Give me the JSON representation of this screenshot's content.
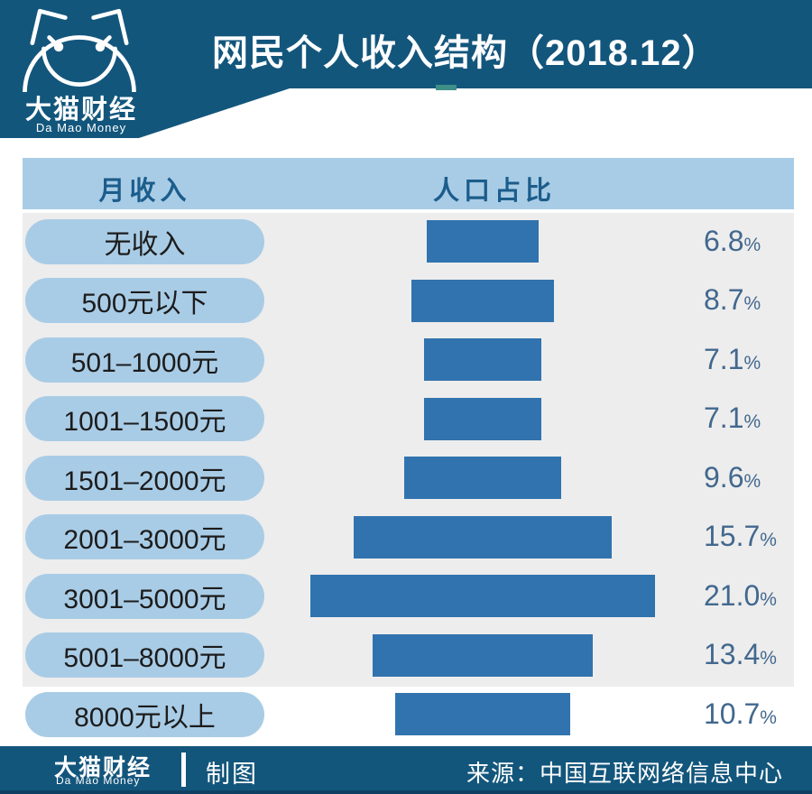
{
  "header": {
    "title": "网民个人收入结构（2018.12）",
    "brand_cn": "大猫财经",
    "brand_en": "Da Mao Money"
  },
  "table": {
    "col_income": "月收入",
    "col_share": "人口占比"
  },
  "chart_data": {
    "type": "bar",
    "orientation": "horizontal",
    "title": "网民个人收入结构（2018.12）",
    "xlabel": "人口占比",
    "ylabel": "月收入",
    "unit": "%",
    "xlim": [
      0,
      22
    ],
    "grid": false,
    "legend": "none",
    "categories": [
      "无收入",
      "500元以下",
      "501–1000元",
      "1001–1500元",
      "1501–2000元",
      "2001–3000元",
      "3001–5000元",
      "5001–8000元",
      "8000元以上"
    ],
    "values": [
      6.8,
      8.7,
      7.1,
      7.1,
      9.6,
      15.7,
      21.0,
      13.4,
      10.7
    ],
    "value_labels": [
      "6.8",
      "8.7",
      "7.1",
      "7.1",
      "9.6",
      "15.7",
      "21.0",
      "13.4",
      "10.7"
    ]
  },
  "colors": {
    "banner_blue": "#13567C",
    "bar_blue": "#3173AE",
    "pill_blue": "#A9CCE6",
    "panel_gray": "#EDEDED",
    "value_text": "#42688E",
    "header_text": "#1B5D8C",
    "teal_accent": "#3E8F88"
  },
  "footer": {
    "brand_cn": "大猫财经",
    "brand_en": "Da Mao Money",
    "credit": "制图",
    "source": "来源：中国互联网络信息中心"
  }
}
